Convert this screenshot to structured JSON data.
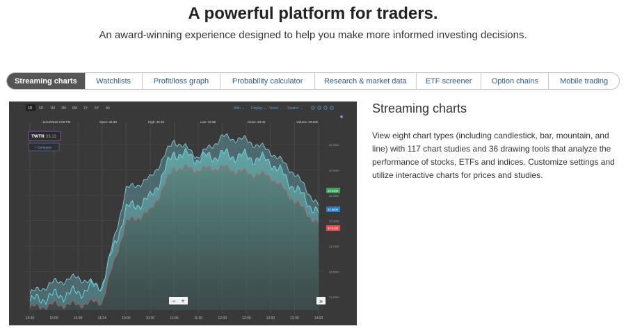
{
  "hero": {
    "title": "A powerful platform for traders.",
    "subtitle": "An award-winning experience designed to help you make more informed investing decisions."
  },
  "tabs": [
    {
      "label": "Streaming charts",
      "active": true
    },
    {
      "label": "Watchlists",
      "active": false
    },
    {
      "label": "Profit/loss graph",
      "active": false
    },
    {
      "label": "Probability calculator",
      "active": false
    },
    {
      "label": "Research & market data",
      "active": false
    },
    {
      "label": "ETF screener",
      "active": false
    },
    {
      "label": "Option chains",
      "active": false
    },
    {
      "label": "Mobile trading",
      "active": false
    }
  ],
  "chart": {
    "ranges": [
      "1D",
      "5D",
      "1M",
      "3M",
      "6M",
      "1Y",
      "5Y",
      "All"
    ],
    "selected_range": "1D",
    "toolbar": [
      "1Min ⌄",
      "Display ⌄",
      "Views ⌄",
      "Studies ⌄"
    ],
    "stats": {
      "datetime": "11/14/2018 2:09 PM",
      "open": "Open: 32.98",
      "high": "High: 33.03",
      "low": "Low: 32.98",
      "close": "Close: 33.00",
      "volume": "Volume: 29.83K"
    },
    "symbol": "TWTR",
    "symbol_price": "33.13",
    "compare_label": "+ Compare",
    "y_ticks": [
      "32.7500",
      "32.5000",
      "32.2500",
      "32.0000",
      "31.7500",
      "31.5000",
      "31.2500"
    ],
    "price_tags": [
      {
        "label": "33.0400",
        "color": "#3aa55a"
      },
      {
        "label": "32.8000",
        "color": "#2a7fc0"
      },
      {
        "label": "32.9130",
        "color": "#d9534f"
      }
    ],
    "x_ticks": [
      "14:30",
      "15:00",
      "15:30",
      "11/14",
      "10:00",
      "10:30",
      "11:00",
      "11:30",
      "12:00",
      "12:30",
      "13:00",
      "13:30",
      "14:00"
    ],
    "zoom_out": "−",
    "zoom_in": "+",
    "expand": "»"
  },
  "chart_data": {
    "type": "area",
    "x": [
      "14:30",
      "15:00",
      "15:30",
      "11/14",
      "10:00",
      "10:30",
      "11:00",
      "11:30",
      "12:00",
      "12:30",
      "13:00",
      "13:30",
      "14:00"
    ],
    "ylim": [
      31.2,
      32.85
    ],
    "series": [
      {
        "values": [
          31.28,
          31.33,
          31.36,
          31.44,
          32.12,
          32.22,
          32.64,
          32.58,
          32.62,
          32.6,
          32.56,
          32.32,
          32.08
        ]
      },
      {
        "values": [
          31.35,
          31.45,
          31.5,
          31.4,
          32.3,
          32.4,
          32.75,
          32.6,
          32.78,
          32.75,
          32.65,
          32.45,
          32.15
        ]
      },
      {
        "values": [
          31.22,
          31.25,
          31.25,
          31.28,
          32.0,
          32.1,
          32.5,
          32.48,
          32.5,
          32.45,
          32.42,
          32.2,
          31.98
        ]
      }
    ],
    "colors": {
      "line": "#5fc7d6",
      "band": "#7fd3e0",
      "fill": "#5a8a86",
      "background": "#393939"
    }
  },
  "side": {
    "title": "Streaming charts",
    "body": "View eight chart types (including candlestick, bar, mountain, and line) with 117 chart studies and 36 drawing tools that analyze the performance of stocks, ETFs and indices. Customize settings and utilize interactive charts for prices and studies."
  }
}
